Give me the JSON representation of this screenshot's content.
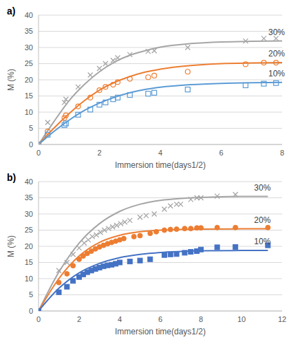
{
  "chart_data": [
    {
      "type": "scatter",
      "title": "a)",
      "xlabel": "Immersion time(days1/2)",
      "ylabel": "M (%)",
      "xlim": [
        0,
        8
      ],
      "xticks": [
        0,
        2,
        4,
        6,
        8
      ],
      "ylim": [
        0,
        40
      ],
      "yticks": [
        0,
        5,
        10,
        15,
        20,
        25,
        30,
        35,
        40
      ],
      "grid": true,
      "series": [
        {
          "name": "30%",
          "color": "#a5a5a5",
          "marker": "x",
          "x": [
            0,
            0.3,
            0.85,
            0.9,
            1.3,
            1.7,
            2.0,
            2.2,
            2.45,
            2.6,
            3.0,
            3.6,
            3.8,
            4.9,
            6.8,
            7.4,
            7.8
          ],
          "values": [
            0,
            6.8,
            13,
            14,
            17.8,
            21.5,
            23.5,
            25,
            26,
            26.8,
            27.8,
            28.8,
            29,
            30,
            32,
            32.8,
            32.8
          ],
          "fit_x": [
            0,
            0.5,
            1,
            1.5,
            2,
            2.5,
            3,
            3.5,
            4,
            5,
            6,
            7,
            8
          ],
          "fit_values": [
            0,
            7,
            13.5,
            18.5,
            22.5,
            25.5,
            27.6,
            29,
            30.1,
            31.2,
            31.7,
            31.9,
            32
          ]
        },
        {
          "name": "20%",
          "color": "#ed7d31",
          "marker": "circle_open",
          "x": [
            0,
            0.3,
            0.85,
            0.9,
            1.3,
            1.7,
            2.0,
            2.2,
            2.45,
            2.6,
            3.0,
            3.6,
            3.8,
            4.9,
            6.8,
            7.4,
            7.8
          ],
          "values": [
            0,
            4,
            8.2,
            9,
            11.8,
            14.5,
            16.8,
            17.8,
            18.5,
            19.3,
            20.3,
            20.8,
            21.3,
            22.5,
            24.8,
            25.3,
            25.3
          ],
          "fit_x": [
            0,
            0.5,
            1,
            1.5,
            2,
            2.5,
            3,
            3.5,
            4,
            5,
            6,
            7,
            8
          ],
          "fit_values": [
            0,
            5,
            9.5,
            13.5,
            16.8,
            19.2,
            21,
            22.4,
            23.3,
            24.4,
            25,
            25.2,
            25.3
          ]
        },
        {
          "name": "10%",
          "color": "#5b9bd5",
          "marker": "square_open",
          "x": [
            0,
            0.3,
            0.85,
            0.9,
            1.3,
            1.7,
            2.0,
            2.2,
            2.45,
            2.6,
            3.0,
            3.6,
            3.8,
            4.9,
            6.8,
            7.4,
            7.8
          ],
          "values": [
            0,
            3,
            6,
            6.5,
            9.2,
            10.8,
            12.3,
            13,
            14,
            14.5,
            15.3,
            15.7,
            16,
            17,
            18.3,
            18.8,
            19
          ],
          "fit_x": [
            0,
            0.5,
            1,
            1.5,
            2,
            2.5,
            3,
            3.5,
            4,
            5,
            6,
            7,
            8
          ],
          "fit_values": [
            0,
            4,
            7.5,
            10.5,
            12.8,
            14.6,
            16,
            17,
            17.7,
            18.5,
            18.9,
            19.1,
            19.2
          ]
        }
      ]
    },
    {
      "type": "scatter",
      "title": "b)",
      "xlabel": "Immersion time(days1/2)",
      "ylabel": "M (%)",
      "xlim": [
        0,
        12
      ],
      "xticks": [
        0,
        2,
        4,
        6,
        8,
        10,
        12
      ],
      "ylim": [
        0,
        40
      ],
      "yticks": [
        0,
        5,
        10,
        15,
        20,
        25,
        30,
        35,
        40
      ],
      "grid": true,
      "series": [
        {
          "name": "30%",
          "color": "#a5a5a5",
          "marker": "x",
          "x": [
            0,
            1,
            1.4,
            1.7,
            2,
            2.25,
            2.45,
            2.65,
            2.85,
            3.05,
            3.25,
            3.45,
            3.65,
            3.85,
            4.05,
            4.25,
            4.5,
            5,
            5.3,
            5.7,
            6.2,
            6.5,
            6.8,
            7,
            7.5,
            7.8,
            8,
            8.8,
            9.7
          ],
          "values": [
            0,
            12.5,
            15,
            17.5,
            19.5,
            21,
            22,
            23,
            23.5,
            24.3,
            25,
            25.5,
            26,
            26.5,
            27,
            27.5,
            28,
            29,
            29.5,
            30,
            31.5,
            32.5,
            33,
            33,
            34.5,
            35,
            35,
            35.5,
            36
          ],
          "fit_x": [
            0,
            1,
            2,
            3,
            4,
            5,
            6,
            7,
            8,
            9,
            10,
            11,
            11.3
          ],
          "fit_values": [
            0,
            12,
            21,
            27,
            30.8,
            33,
            34.2,
            34.8,
            35.1,
            35.3,
            35.4,
            35.4,
            35.4
          ]
        },
        {
          "name": "20%",
          "color": "#ed7d31",
          "marker": "circle",
          "x": [
            0,
            1,
            1.4,
            1.7,
            2,
            2.2,
            2.4,
            2.6,
            2.8,
            3,
            3.2,
            3.4,
            3.6,
            3.8,
            4,
            4.2,
            4.7,
            5,
            5.5,
            5.8,
            6.2,
            6.5,
            6.8,
            7.2,
            7.5,
            7.8,
            8,
            8.8,
            9.7,
            11.3
          ],
          "values": [
            0,
            8.8,
            11.5,
            14,
            16,
            17,
            17.8,
            18.5,
            19.2,
            19.8,
            20.3,
            20.8,
            21.2,
            21.6,
            22,
            22.4,
            23,
            23.3,
            24,
            24.5,
            25,
            25.2,
            25.3,
            25.5,
            25.5,
            25.7,
            25.7,
            25.8,
            25.8,
            25.8
          ],
          "fit_x": [
            0,
            1,
            2,
            3,
            4,
            5,
            6,
            7,
            8,
            10,
            11.3
          ],
          "fit_values": [
            0,
            10,
            17,
            21.2,
            23.4,
            24.5,
            25,
            25.2,
            25.3,
            25.4,
            25.4
          ]
        },
        {
          "name": "10%",
          "color": "#4472c4",
          "marker": "square",
          "x": [
            0,
            1,
            1.4,
            1.7,
            2,
            2.2,
            2.4,
            2.6,
            2.8,
            3,
            3.2,
            3.4,
            3.6,
            3.8,
            4,
            4.5,
            5,
            5.5,
            6.2,
            6.5,
            6.8,
            7.2,
            7.5,
            7.8,
            8,
            8.8,
            9.7,
            11.3
          ],
          "values": [
            0,
            5.8,
            7.5,
            9.3,
            10.5,
            11.3,
            12,
            12.5,
            13,
            13.4,
            13.8,
            14.1,
            14.3,
            14.6,
            15,
            15.3,
            15.6,
            16,
            17.3,
            17.5,
            17.6,
            18,
            18.3,
            18.5,
            19,
            19.7,
            19.8,
            20.3
          ],
          "fit_x": [
            0,
            1,
            2,
            3,
            4,
            5,
            6,
            7,
            8,
            10,
            11.3
          ],
          "fit_values": [
            0,
            7,
            11.8,
            14.7,
            16.5,
            17.5,
            18.1,
            18.4,
            18.6,
            18.7,
            18.7
          ]
        }
      ]
    }
  ]
}
